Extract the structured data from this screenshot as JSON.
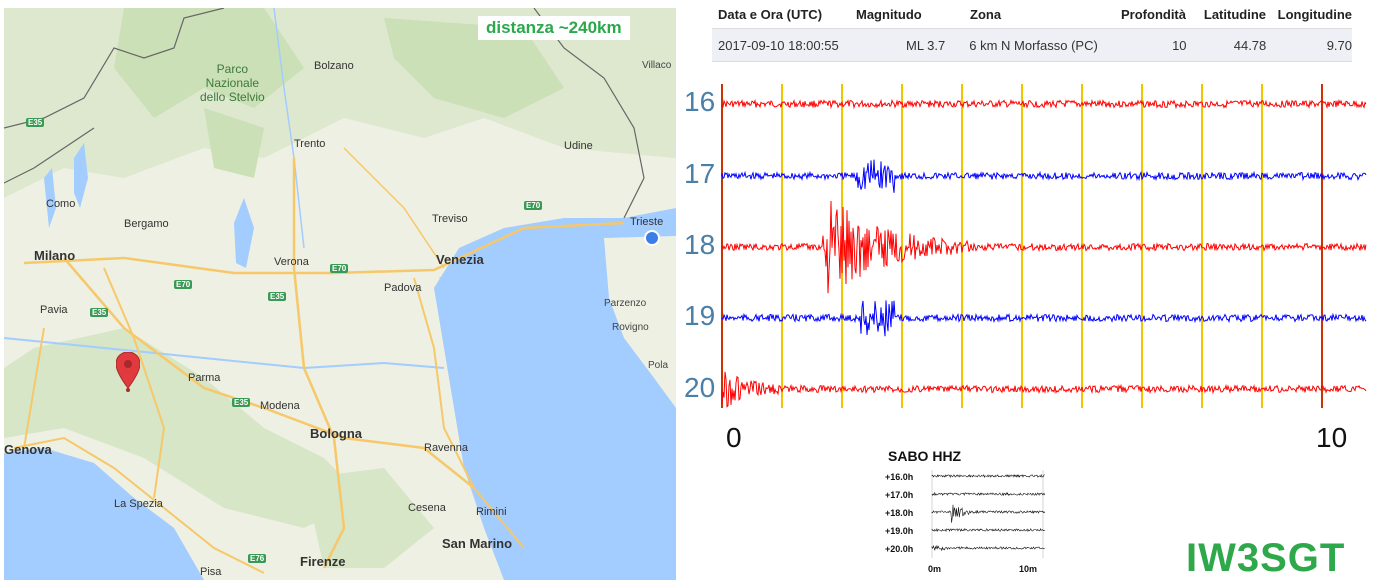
{
  "map": {
    "distance_label": "distanza ~240km",
    "park": [
      "Parco",
      "Nazionale",
      "dello Stelvio"
    ],
    "cities": [
      "Bolzano",
      "Trento",
      "Udine",
      "Villaco",
      "Como",
      "Bergamo",
      "Milano",
      "Verona",
      "Treviso",
      "Trieste",
      "Venezia",
      "Padova",
      "Pavia",
      "Parzenzo",
      "Rovigno",
      "Parma",
      "Modena",
      "Bologna",
      "Pola",
      "Genova",
      "Ravenna",
      "La Spezia",
      "Cesena",
      "Rimini",
      "San Marino",
      "Firenze",
      "Pisa"
    ],
    "roads": [
      "E35",
      "E70",
      "E70",
      "E70",
      "E35",
      "E35",
      "E35",
      "E76"
    ],
    "colors": {
      "water": "#a3ccff",
      "land": "#eef0e3",
      "forest": "#cfe3c0",
      "road": "#f6c86a",
      "border": "#666666",
      "marker": "#e0393e",
      "accent": "#2aa84a"
    }
  },
  "event_table": {
    "headers": [
      "Data e Ora (UTC)",
      "Magnitudo",
      "Zona",
      "Profondità",
      "Latitudine",
      "Longitudine"
    ],
    "row": [
      "2017-09-10 18:00:55",
      "ML 3.7",
      "6 km N Morfasso (PC)",
      "10",
      "44.78",
      "9.70"
    ]
  },
  "seismogram": {
    "hours": [
      "16",
      "17",
      "18",
      "19",
      "20"
    ],
    "x_labels": [
      "0",
      "10"
    ],
    "colors": [
      "#ff0000",
      "#0000ff",
      "#ff0000",
      "#0000ff",
      "#ff0000"
    ]
  },
  "mini": {
    "title": "SABO HHZ",
    "lines": [
      "+16.0h",
      "+17.0h",
      "+18.0h",
      "+19.0h",
      "+20.0h"
    ],
    "x_labels": [
      "0m",
      "10m"
    ]
  },
  "logo": "IW3SGT"
}
